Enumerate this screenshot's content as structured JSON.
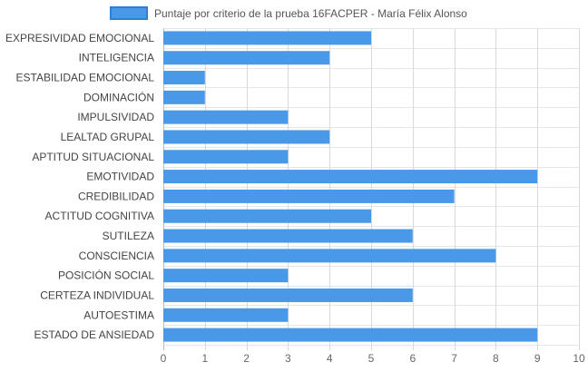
{
  "chart_data": {
    "type": "bar",
    "orientation": "horizontal",
    "legend": "top",
    "grid": true,
    "xlim": [
      0,
      10
    ],
    "x_ticks": [
      0,
      1,
      2,
      3,
      4,
      5,
      6,
      7,
      8,
      9,
      10
    ],
    "series": [
      {
        "name": "Puntaje por criterio de la prueba 16FACPER - María Félix Alonso",
        "color": "#4a98e8",
        "values": [
          5,
          4,
          1,
          1,
          3,
          4,
          3,
          9,
          7,
          5,
          6,
          8,
          3,
          6,
          3,
          9
        ]
      }
    ],
    "categories": [
      "EXPRESIVIDAD EMOCIONAL",
      "INTELIGENCIA",
      "ESTABILIDAD EMOCIONAL",
      "DOMINACIÓN",
      "IMPULSIVIDAD",
      "LEALTAD GRUPAL",
      "APTITUD SITUACIONAL",
      "EMOTIVIDAD",
      "CREDIBILIDAD",
      "ACTITUD COGNITIVA",
      "SUTILEZA",
      "CONSCIENCIA",
      "POSICIÓN SOCIAL",
      "CERTEZA INDIVIDUAL",
      "AUTOESTIMA",
      "ESTADO DE ANSIEDAD"
    ]
  }
}
